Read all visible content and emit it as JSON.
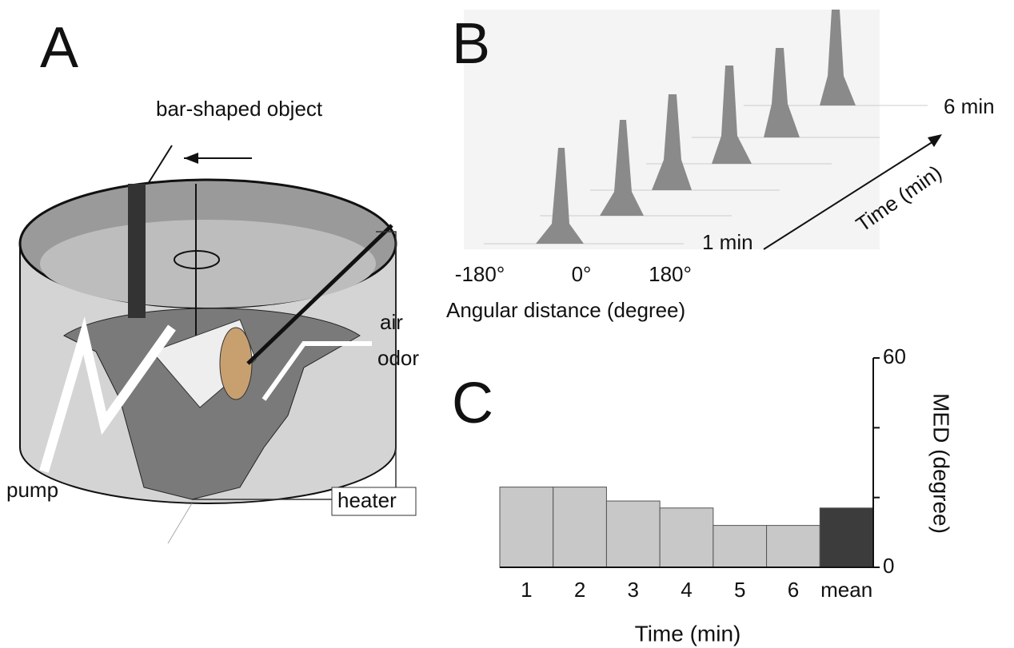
{
  "panel_a": {
    "label": "A",
    "object": "bar-shaped object",
    "air": "air",
    "odor": "odor",
    "pump": "pump",
    "heater": "heater"
  },
  "panel_b": {
    "label": "B",
    "end_time": "6 min",
    "start_time": "1 min",
    "time_axis": "Time (min)",
    "x_ticks": [
      "-180°",
      "0°",
      "180°"
    ],
    "x_axis": "Angular distance (degree)"
  },
  "chart_data": {
    "type": "bar",
    "label": "C",
    "categories": [
      "1",
      "2",
      "3",
      "4",
      "5",
      "6",
      "mean"
    ],
    "values": [
      23,
      23,
      19,
      17,
      12,
      12,
      17
    ],
    "colors": [
      "#c8c8c8",
      "#c8c8c8",
      "#c8c8c8",
      "#c8c8c8",
      "#c8c8c8",
      "#c8c8c8",
      "#3c3c3c"
    ],
    "ylim": [
      0,
      60
    ],
    "yticks": [
      0,
      60
    ],
    "minor_yticks": [
      20,
      40
    ],
    "y_axis_side": "right",
    "ylabel": "MED (degree)",
    "xlabel": "Time (min)"
  }
}
